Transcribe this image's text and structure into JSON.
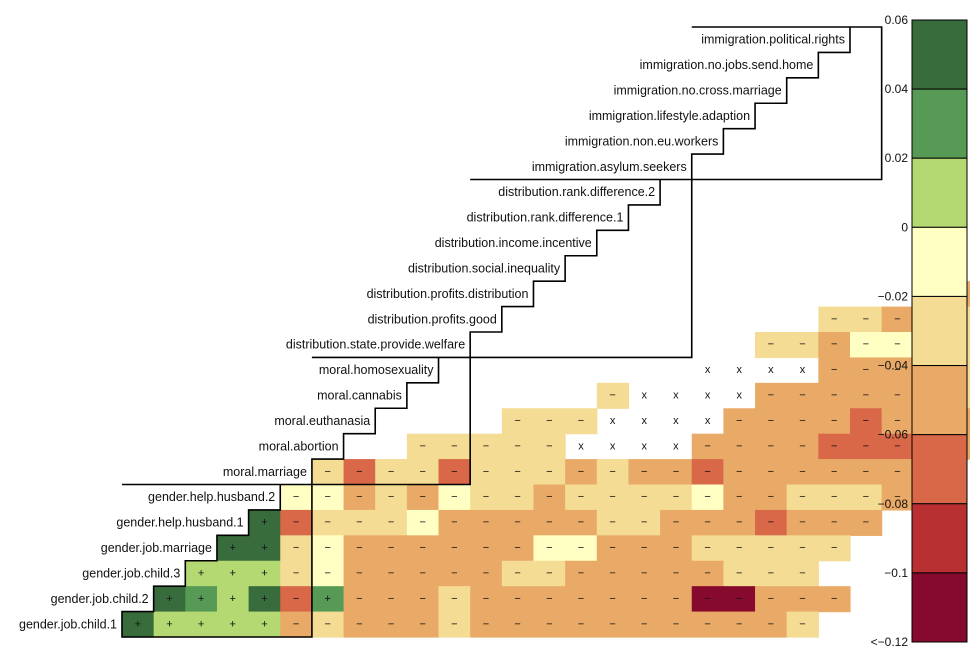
{
  "chart_data": {
    "type": "heatmap",
    "rows": [
      "immigration.political.rights",
      "immigration.no.jobs.send.home",
      "immigration.no.cross.marriage",
      "immigration.lifestyle.adaption",
      "immigration.non.eu.workers",
      "immigration.asylum.seekers",
      "distribution.rank.difference.2",
      "distribution.rank.difference.1",
      "distribution.income.incentive",
      "distribution.social.inequality",
      "distribution.profits.distribution",
      "distribution.profits.good",
      "distribution.state.provide.welfare",
      "moral.homosexuality",
      "moral.cannabis",
      "moral.euthanasia",
      "moral.abortion",
      "moral.marriage",
      "gender.help.husband.2",
      "gender.help.husband.1",
      "gender.job.marriage",
      "gender.job.child.3",
      "gender.job.child.2",
      "gender.job.child.1"
    ],
    "groups": [
      {
        "name": "immigration",
        "first_row": 0,
        "last_row": 5
      },
      {
        "name": "distribution",
        "first_row": 6,
        "last_row": 12
      },
      {
        "name": "moral",
        "first_row": 13,
        "last_row": 17
      },
      {
        "name": "gender",
        "first_row": 18,
        "last_row": 23
      }
    ],
    "cells": [
      "..........................N",
      ".........................Nm",
      "........................Pm",
      ".......................mmm",
      "......................nnn",
      ".....................nqnn",
      "...................qqnnqqrq",
      "..................nnqqnnnnn",
      "................nnnqnnnnnn",
      "..............mnnn..nnnqn",
      "............mnnnq..qqqqq",
      "..........mmnnmn..nnnqq",
      ".........mmnNNNm..nnnnn",
      "........XXXXnnnmmmmmnPnm",
      "......mXXXXnnnnnmmmmmmn",
      "....mmmXXXXnnnnqnnnnnn",
      "..mmmmmXXXXnnnnqqqqnnn",
      "mqmmqmmmnmnnqnnnnnnn",
      "NNnmnNmmnmmmmNnnmmmnm",
      "TqmmmNnnnnnmmnnnqnnn",
      "TTmNnnnnnnNNnnnmmmmm",
      "PPPmNnnnnnmmnnnnnmmm",
      "TSPTqSnnnmnnnnnnnRRnnn",
      "TPPPPnmnnnmnnnnnnnnnnm"
    ],
    "cell_codes": {
      "T": {
        "value": 0.05,
        "mark": "+"
      },
      "S": {
        "value": 0.03,
        "mark": "+"
      },
      "P": {
        "value": 0.01,
        "mark": "+"
      },
      "N": {
        "value": -0.01,
        "mark": "−"
      },
      "m": {
        "value": -0.03,
        "mark": "−"
      },
      "n": {
        "value": -0.05,
        "mark": "−"
      },
      "q": {
        "value": -0.07,
        "mark": "−"
      },
      "r": {
        "value": -0.09,
        "mark": "−"
      },
      "R": {
        "value": -0.11,
        "mark": "−"
      },
      "X": {
        "value": null,
        "mark": "x"
      },
      ".": {
        "value": null,
        "mark": ""
      }
    },
    "colorbar": {
      "range": [
        -0.12,
        0.06
      ],
      "ticks": [
        {
          "value": 0.06,
          "label": "0.06"
        },
        {
          "value": 0.04,
          "label": "0.04"
        },
        {
          "value": 0.02,
          "label": "0.02"
        },
        {
          "value": 0,
          "label": "0"
        },
        {
          "value": -0.02,
          "label": "−0.02"
        },
        {
          "value": -0.04,
          "label": "−0.04"
        },
        {
          "value": -0.06,
          "label": "−0.06"
        },
        {
          "value": -0.08,
          "label": "−0.08"
        },
        {
          "value": -0.1,
          "label": "−0.1"
        },
        {
          "value": -0.12,
          "label": "<−0.12"
        }
      ],
      "bands": [
        {
          "min": 0.04,
          "max": 0.06,
          "color": "#386c3c"
        },
        {
          "min": 0.02,
          "max": 0.04,
          "color": "#579a55"
        },
        {
          "min": 0.0,
          "max": 0.02,
          "color": "#b4d872"
        },
        {
          "min": -0.02,
          "max": 0.0,
          "color": "#ffffc4"
        },
        {
          "min": -0.04,
          "max": -0.02,
          "color": "#f4dc95"
        },
        {
          "min": -0.06,
          "max": -0.04,
          "color": "#e9aa68"
        },
        {
          "min": -0.08,
          "max": -0.06,
          "color": "#d86848"
        },
        {
          "min": -0.1,
          "max": -0.08,
          "color": "#b93033"
        },
        {
          "min": -0.12,
          "max": -0.1,
          "color": "#850a2d"
        }
      ]
    },
    "xlabel": "",
    "ylabel": "",
    "title": ""
  }
}
